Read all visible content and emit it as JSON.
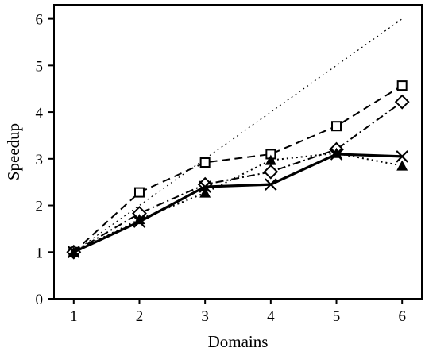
{
  "chart_data": {
    "type": "line",
    "xlabel": "Domains",
    "ylabel": "Speedup",
    "x": [
      1,
      2,
      3,
      4,
      5,
      6
    ],
    "xlim": [
      0.7,
      6.3
    ],
    "ylim": [
      0,
      6.3
    ],
    "xticks": [
      "1",
      "2",
      "3",
      "4",
      "5",
      "6"
    ],
    "yticks": [
      "0",
      "1",
      "2",
      "3",
      "4",
      "5",
      "6"
    ],
    "grid": false,
    "legend": "none",
    "series": [
      {
        "key": "ideal",
        "values": [
          1,
          2,
          3,
          4,
          5,
          6
        ],
        "style": "dotted",
        "marker": "none",
        "color": "#000000"
      },
      {
        "key": "squares",
        "values": [
          1.0,
          2.28,
          2.92,
          3.1,
          3.7,
          4.57
        ],
        "style": "dashed",
        "marker": "square",
        "color": "#000000"
      },
      {
        "key": "diamonds",
        "values": [
          1.0,
          1.83,
          2.45,
          2.72,
          3.2,
          4.22
        ],
        "style": "dashdot",
        "marker": "diamond",
        "color": "#000000"
      },
      {
        "key": "triangles",
        "values": [
          1.0,
          1.7,
          2.27,
          2.97,
          3.12,
          2.85
        ],
        "style": "dotted",
        "marker": "triangle",
        "color": "#000000"
      },
      {
        "key": "crosses",
        "values": [
          1.0,
          1.65,
          2.4,
          2.45,
          3.1,
          3.05
        ],
        "style": "solid-thick",
        "marker": "x",
        "color": "#000000"
      }
    ]
  }
}
